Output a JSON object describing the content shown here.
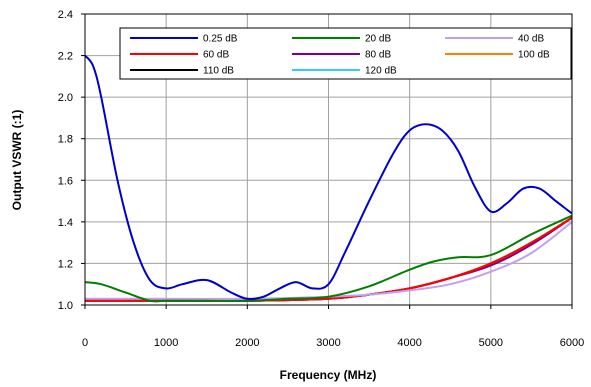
{
  "chart_data": {
    "type": "line",
    "xlabel": "Frequency (MHz)",
    "ylabel": "Output VSWR (:1)",
    "xlim": [
      0,
      6000
    ],
    "ylim": [
      1.0,
      2.4
    ],
    "xticks": [
      0,
      1000,
      2000,
      3000,
      4000,
      5000,
      6000
    ],
    "yticks": [
      1.0,
      1.2,
      1.4,
      1.6,
      1.8,
      2.0,
      2.2,
      2.4
    ],
    "xtick_labels": [
      "0",
      "1000",
      "2000",
      "3000",
      "4000",
      "5000",
      "6000"
    ],
    "ytick_labels": [
      "1.0",
      "1.2",
      "1.4",
      "1.6",
      "1.8",
      "2.0",
      "2.2",
      "2.4"
    ],
    "grid": true,
    "legend_position": "top",
    "series": [
      {
        "name": "0.25 dB",
        "color": "#0000cc",
        "x": [
          0,
          100,
          200,
          400,
          600,
          800,
          1000,
          1200,
          1500,
          1800,
          2000,
          2200,
          2400,
          2600,
          2800,
          3000,
          3200,
          3500,
          3800,
          4000,
          4200,
          4400,
          4600,
          4800,
          5000,
          5200,
          5400,
          5600,
          5800,
          6000
        ],
        "y": [
          2.2,
          2.15,
          2.0,
          1.6,
          1.3,
          1.12,
          1.08,
          1.1,
          1.12,
          1.06,
          1.03,
          1.04,
          1.08,
          1.11,
          1.08,
          1.1,
          1.25,
          1.5,
          1.73,
          1.84,
          1.87,
          1.84,
          1.74,
          1.57,
          1.45,
          1.49,
          1.56,
          1.56,
          1.5,
          1.44
        ]
      },
      {
        "name": "20 dB",
        "color": "#008000",
        "x": [
          0,
          200,
          500,
          800,
          1000,
          1500,
          2000,
          2500,
          3000,
          3500,
          4000,
          4300,
          4600,
          5000,
          5500,
          6000
        ],
        "y": [
          1.11,
          1.1,
          1.06,
          1.02,
          1.02,
          1.02,
          1.02,
          1.03,
          1.04,
          1.09,
          1.17,
          1.21,
          1.23,
          1.24,
          1.34,
          1.43
        ]
      },
      {
        "name": "40 dB",
        "color": "#c0a0f0",
        "x": [
          0,
          1000,
          2000,
          3000,
          3500,
          4000,
          4500,
          5000,
          5500,
          6000
        ],
        "y": [
          1.03,
          1.03,
          1.03,
          1.04,
          1.05,
          1.07,
          1.1,
          1.16,
          1.25,
          1.4
        ]
      },
      {
        "name": "60 dB",
        "color": "#ff0000",
        "x": [
          0,
          1000,
          2000,
          3000,
          3500,
          4000,
          4500,
          5000,
          5500,
          6000
        ],
        "y": [
          1.02,
          1.02,
          1.02,
          1.03,
          1.05,
          1.08,
          1.13,
          1.2,
          1.3,
          1.42
        ]
      },
      {
        "name": "80 dB",
        "color": "#800080",
        "x": [
          0,
          1000,
          2000,
          3000,
          3500,
          4000,
          4500,
          5000,
          5500,
          6000
        ],
        "y": [
          1.02,
          1.02,
          1.02,
          1.03,
          1.05,
          1.08,
          1.13,
          1.19,
          1.29,
          1.42
        ]
      },
      {
        "name": "100 dB",
        "color": "#ff8000",
        "x": [
          0,
          1000,
          2000,
          3000,
          3500,
          4000,
          4500,
          5000,
          5500,
          6000
        ],
        "y": [
          1.02,
          1.02,
          1.02,
          1.03,
          1.05,
          1.08,
          1.13,
          1.2,
          1.3,
          1.42
        ]
      },
      {
        "name": "110 dB",
        "color": "#000000",
        "x": [
          0,
          1000,
          2000,
          3000,
          3500,
          4000,
          4500,
          5000,
          5500,
          6000
        ],
        "y": [
          1.02,
          1.02,
          1.02,
          1.03,
          1.05,
          1.08,
          1.13,
          1.2,
          1.3,
          1.42
        ]
      },
      {
        "name": "120 dB",
        "color": "#33ccff",
        "x": [
          0,
          1000,
          2000,
          3000,
          3500,
          4000,
          4500,
          5000,
          5500,
          6000
        ],
        "y": [
          1.02,
          1.02,
          1.02,
          1.03,
          1.05,
          1.08,
          1.13,
          1.2,
          1.3,
          1.42
        ]
      }
    ]
  }
}
